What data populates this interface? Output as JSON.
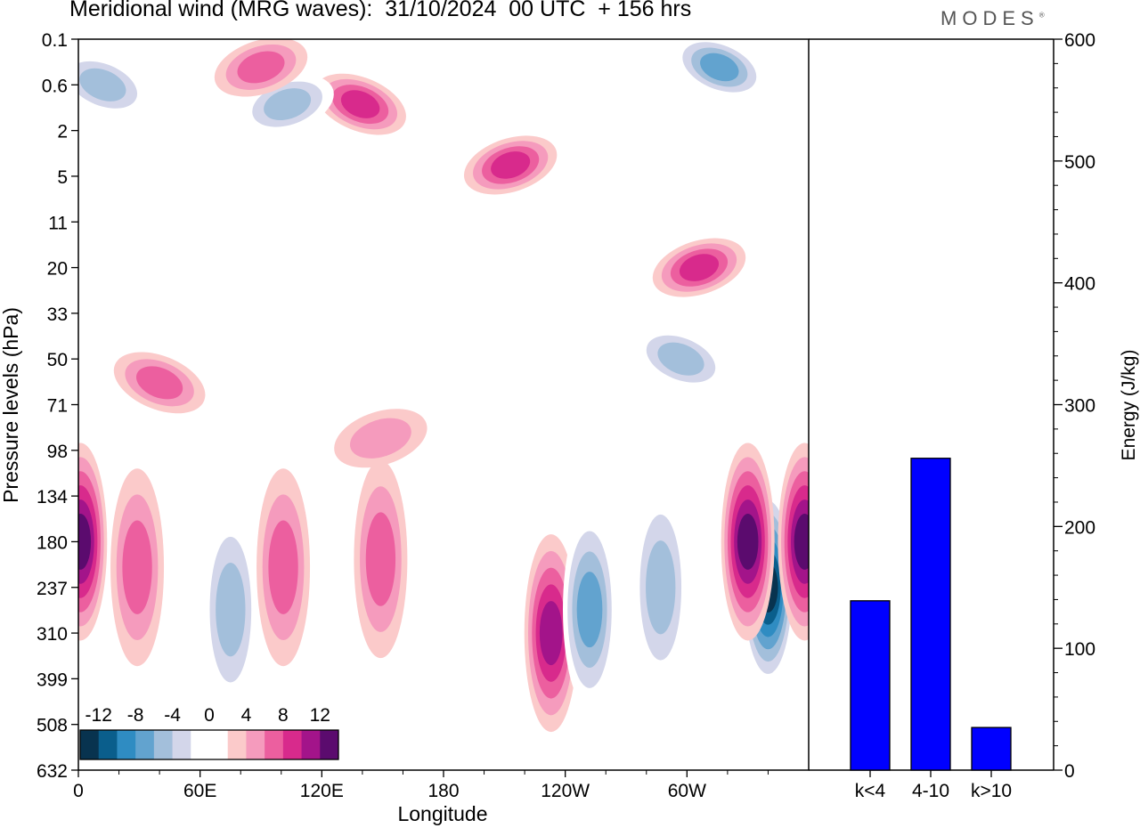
{
  "header": {
    "title": "Meridional wind (MRG waves):  31/10/2024  00 UTC  + 156 hrs",
    "brand": "MODES"
  },
  "chart_data": [
    {
      "type": "heatmap",
      "title": "Meridional wind (MRG waves):  31/10/2024  00 UTC  + 156 hrs",
      "xlabel": "Longitude",
      "ylabel": "Pressure levels (hPa)",
      "x_ticks": [
        "0",
        "60E",
        "120E",
        "180",
        "120W",
        "60W"
      ],
      "y_ticks": [
        "0.1",
        "0.6",
        "2",
        "5",
        "11",
        "20",
        "33",
        "50",
        "71",
        "98",
        "134",
        "180",
        "237",
        "310",
        "399",
        "508",
        "632"
      ],
      "colorbar": {
        "tick_labels": [
          "-12",
          "-8",
          "-4",
          "0",
          "4",
          "8",
          "12"
        ],
        "colors": [
          "#08334f",
          "#0a5e8c",
          "#2f8cc2",
          "#62a3cf",
          "#a3bfdb",
          "#d3d6ea",
          "#ffffff",
          "#ffffff",
          "#fbcaca",
          "#f59bbd",
          "#ec5f9f",
          "#d82a8c",
          "#a3148a",
          "#5b0b6e"
        ]
      },
      "contour_features": [
        {
          "lon": 340,
          "level": 237,
          "value": -14
        },
        {
          "lon": 330,
          "level": 180,
          "value": 12
        },
        {
          "lon": 358,
          "level": 180,
          "value": 12
        },
        {
          "lon": 1,
          "level": 180,
          "value": 12
        },
        {
          "lon": 233,
          "level": 310,
          "value": 10
        },
        {
          "lon": 252,
          "level": 270,
          "value": -8
        },
        {
          "lon": 287,
          "level": 237,
          "value": -6
        },
        {
          "lon": 75,
          "level": 270,
          "value": -6
        },
        {
          "lon": 101,
          "level": 210,
          "value": 6
        },
        {
          "lon": 149,
          "level": 200,
          "value": 6
        },
        {
          "lon": 29,
          "level": 210,
          "value": 6
        },
        {
          "lon": 297,
          "level": 50,
          "value": -6
        },
        {
          "lon": 306,
          "level": 20,
          "value": 8
        },
        {
          "lon": 40,
          "level": 60,
          "value": 6
        },
        {
          "lon": 149,
          "level": 90,
          "value": 5
        },
        {
          "lon": 139,
          "level": 1,
          "value": 8
        },
        {
          "lon": 213,
          "level": 4,
          "value": 8
        },
        {
          "lon": 316,
          "level": 0.3,
          "value": -8
        },
        {
          "lon": 103,
          "level": 1,
          "value": -7
        },
        {
          "lon": 12,
          "level": 0.6,
          "value": -6
        },
        {
          "lon": 90,
          "level": 0.3,
          "value": 6
        }
      ]
    },
    {
      "type": "bar",
      "categories": [
        "k<4",
        "4-10",
        "k>10"
      ],
      "values": [
        139,
        256,
        35
      ],
      "ylabel": "Energy (J/kg)",
      "ylim": [
        0,
        600
      ],
      "y_ticks": [
        0,
        100,
        200,
        300,
        400,
        500,
        600
      ],
      "bar_color": "#0000ff"
    }
  ]
}
